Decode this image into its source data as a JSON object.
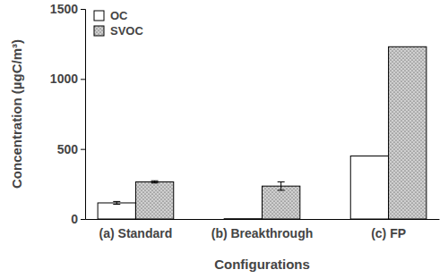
{
  "chart_data": {
    "type": "bar",
    "x_label": "Configurations",
    "y_label": "Concentration (µgC/m³)",
    "categories": [
      "(a) Standard",
      "(b) Breakthrough",
      "(c) FP"
    ],
    "series": [
      {
        "name": "OC",
        "color": "#ffffff",
        "values": [
          115,
          2,
          450
        ],
        "errors": [
          10,
          null,
          null
        ]
      },
      {
        "name": "SVOC",
        "color": "#d0d0d0",
        "values": [
          265,
          235,
          1230
        ],
        "errors": [
          8,
          30,
          null
        ]
      }
    ],
    "ylim": [
      0,
      1500
    ],
    "yticks": [
      0,
      500,
      1000,
      1500
    ],
    "grid": false,
    "legend": "upper left"
  }
}
